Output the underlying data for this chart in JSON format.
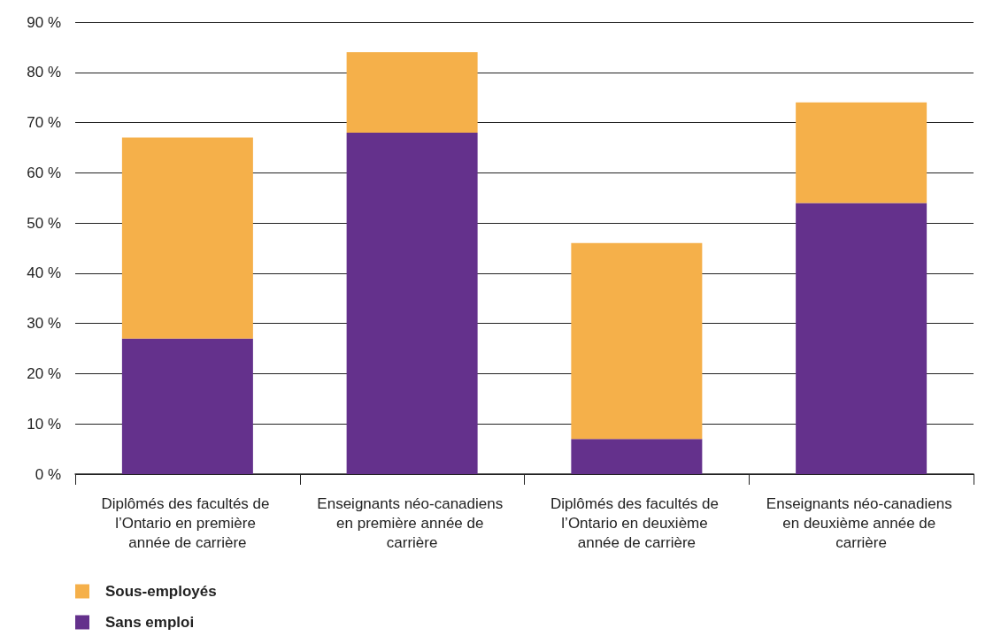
{
  "chart_data": {
    "type": "bar",
    "stacked": true,
    "categories": [
      "Diplômés des facultés de l’Ontario en première année de carrière",
      "Enseignants néo-canadiens en première année de carrière",
      "Diplômés des facultés de l’Ontario en deuxième année de carrière",
      "Enseignants néo-canadiens en deuxième année de carrière"
    ],
    "series": [
      {
        "name": "Sans emploi",
        "color": "#64318c",
        "values": [
          27,
          68,
          7,
          54
        ]
      },
      {
        "name": "Sous-employés",
        "color": "#f5b04a",
        "values": [
          40,
          16,
          39,
          20
        ]
      }
    ],
    "ylim": [
      0,
      90
    ],
    "yticks": [
      {
        "value": 0,
        "label": "0 %"
      },
      {
        "value": 10,
        "label": "10 %"
      },
      {
        "value": 20,
        "label": "20 %"
      },
      {
        "value": 30,
        "label": "30 %"
      },
      {
        "value": 40,
        "label": "40 %"
      },
      {
        "value": 50,
        "label": "50 %"
      },
      {
        "value": 60,
        "label": "60 %"
      },
      {
        "value": 70,
        "label": "70 %"
      },
      {
        "value": 80,
        "label": "80 %"
      },
      {
        "value": 90,
        "label": "90 %"
      }
    ],
    "grid": "y",
    "legend": "bottom left"
  }
}
